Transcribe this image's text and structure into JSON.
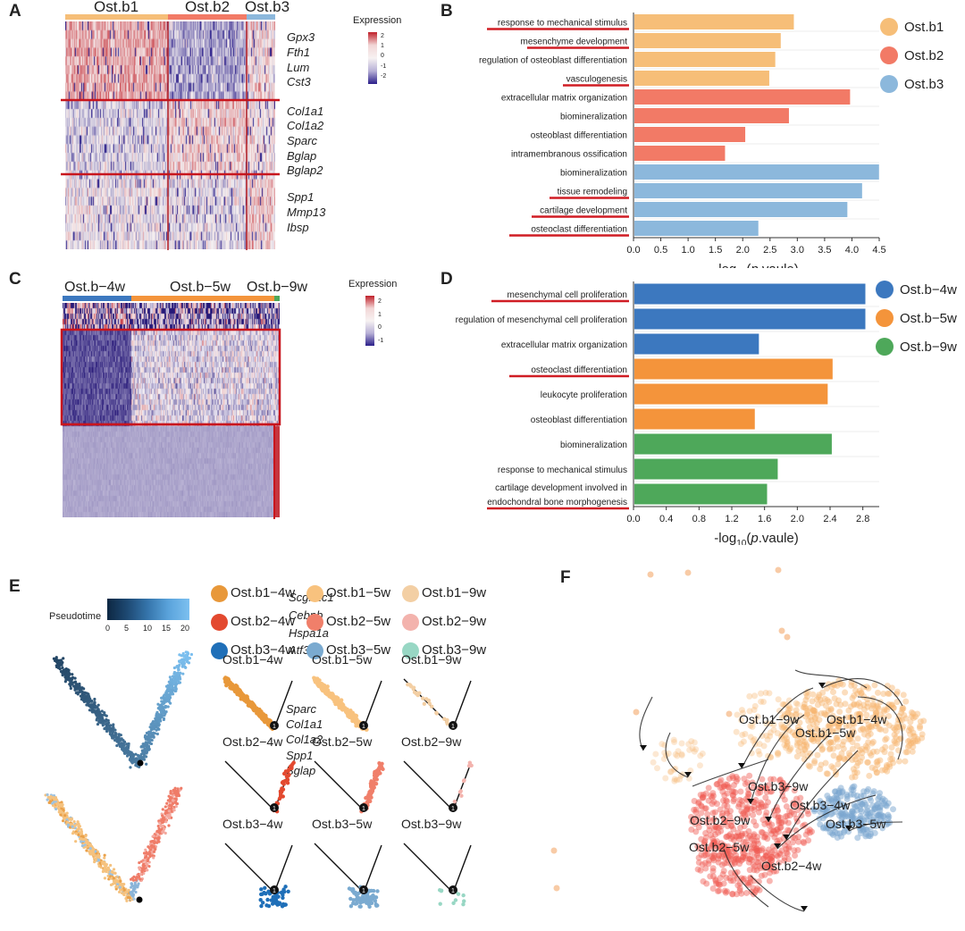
{
  "panels": {
    "A": "A",
    "B": "B",
    "C": "C",
    "D": "D",
    "E": "E",
    "F": "F"
  },
  "colors": {
    "b1": "#f6be78",
    "b2": "#f27a66",
    "b3": "#8cb8dc",
    "w4blue": "#3c78bf",
    "w5orange": "#f4943b",
    "w9green": "#4ea85a",
    "heat_high": "#c0202a",
    "heat_mid": "#f7f2f2",
    "heat_low": "#2b1f8a",
    "underline": "#d01d24"
  },
  "heatmapA": {
    "groups": [
      "Ost.b1",
      "Ost.b2",
      "Ost.b3"
    ],
    "genes": [
      "Gpx3",
      "Fth1",
      "Lum",
      "Cst3",
      "Col1a1",
      "Col1a2",
      "Sparc",
      "Bglap",
      "Bglap2",
      "Spp1",
      "Mmp13",
      "Ibsp"
    ],
    "legend_title": "Expression",
    "legend_ticks": [
      "2",
      "1",
      "0",
      "-1",
      "-2"
    ]
  },
  "heatmapC": {
    "groups": [
      "Ost.b−4w",
      "Ost.b−5w",
      "Ost.b−9w"
    ],
    "genes": [
      "Scgb1c1",
      "Cebpb",
      "Hspa1a",
      "Atf3",
      "Sparc",
      "Col1a1",
      "Col1a2",
      "Spp1",
      "Bglap"
    ],
    "legend_title": "Expression",
    "legend_ticks": [
      "2",
      "1",
      "0",
      "-1"
    ]
  },
  "chart_data": [
    {
      "id": "B",
      "type": "bar",
      "orientation": "horizontal",
      "xlabel_prefix": "-log",
      "xlabel_sub": "10",
      "xlabel_italic": "p",
      "xlabel_suffix": ".vaule)",
      "xlabel_open": "(",
      "xlim": [
        0,
        4.5
      ],
      "ticks": [
        "0.0",
        "0.5",
        "1.0",
        "1.5",
        "2.0",
        "2.5",
        "3.0",
        "3.5",
        "4.0",
        "4.5"
      ],
      "legend": [
        "Ost.b1",
        "Ost.b2",
        "Ost.b3"
      ],
      "categories": [
        "response to mechanical stimulus",
        "mesenchyme development",
        "regulation of osteoblast differentiation",
        "vasculogenesis",
        "extracellular matrix organization",
        "biomineralization",
        "osteoblast differentiation",
        "intramembranous ossification",
        "biomineralization",
        "tissue remodeling",
        "cartilage development",
        "osteoclast differentiation"
      ],
      "values": [
        2.92,
        2.68,
        2.58,
        2.47,
        3.95,
        2.83,
        2.03,
        1.66,
        4.48,
        4.17,
        3.9,
        2.27
      ],
      "groups": [
        0,
        0,
        0,
        0,
        1,
        1,
        1,
        1,
        2,
        2,
        2,
        2
      ],
      "underlined": [
        true,
        true,
        false,
        true,
        false,
        false,
        false,
        false,
        false,
        true,
        true,
        true
      ]
    },
    {
      "id": "D",
      "type": "bar",
      "orientation": "horizontal",
      "xlabel_prefix": "-log",
      "xlabel_sub": "10",
      "xlabel_italic": "p",
      "xlabel_suffix": ".vaule)",
      "xlabel_open": "(",
      "xlim": [
        0,
        3.0
      ],
      "ticks": [
        "0.0",
        "0.4",
        "0.8",
        "1.2",
        "1.6",
        "2.0",
        "2.4",
        "2.8"
      ],
      "legend": [
        "Ost.b−4w",
        "Ost.b−5w",
        "Ost.b−9w"
      ],
      "categories": [
        "mesenchymal cell proliferation",
        "regulation of mesenchymal cell proliferation",
        "extracellular matrix organization",
        "osteoclast differentiation",
        "leukocyte proliferation",
        "osteoblast differentiation",
        "biomineralization",
        "response to mechanical stimulus",
        "cartilage development involved in|endochondral bone morphogenesis"
      ],
      "values": [
        2.82,
        2.82,
        1.52,
        2.42,
        2.36,
        1.47,
        2.41,
        1.75,
        1.62
      ],
      "groups": [
        0,
        0,
        0,
        1,
        1,
        1,
        2,
        2,
        2
      ],
      "underlined": [
        true,
        false,
        false,
        true,
        false,
        false,
        false,
        false,
        true
      ]
    }
  ],
  "panelE": {
    "pseudotime_label": "Pseudotime",
    "pseudotime_ticks": [
      "0",
      "5",
      "10",
      "15",
      "20"
    ],
    "legend": [
      {
        "label": "Ost.b1−4w",
        "color": "#e8983a"
      },
      {
        "label": "Ost.b1−5w",
        "color": "#f8c27e"
      },
      {
        "label": "Ost.b1−9w",
        "color": "#f3cfa4"
      },
      {
        "label": "Ost.b2−4w",
        "color": "#e3492f"
      },
      {
        "label": "Ost.b2−5w",
        "color": "#f07f6a"
      },
      {
        "label": "Ost.b2−9w",
        "color": "#f3b3ad"
      },
      {
        "label": "Ost.b3−4w",
        "color": "#1f6fb8"
      },
      {
        "label": "Ost.b3−5w",
        "color": "#7aaad0"
      },
      {
        "label": "Ost.b3−9w",
        "color": "#98d7c4"
      }
    ],
    "node_label": "1"
  },
  "panelF": {
    "labels": [
      "Ost.b1−9w",
      "Ost.b1−4w",
      "Ost.b1−5w",
      "Ost.b3−9w",
      "Ost.b3−4w",
      "Ost.b3−5w",
      "Ost.b2−9w",
      "Ost.b2−5w",
      "Ost.b2−4w"
    ]
  }
}
